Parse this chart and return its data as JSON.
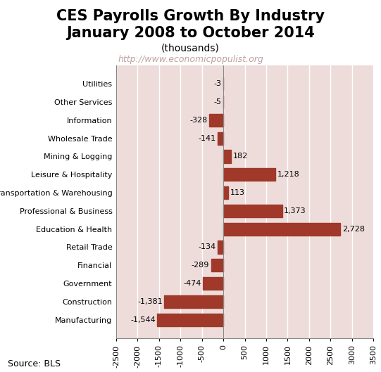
{
  "title_line1": "CES Payrolls Growth By Industry",
  "title_line2": "January 2008 to October 2014",
  "subtitle": "(thousands)",
  "watermark": "http://www.economicpopulist.org",
  "source": "Source: BLS",
  "categories": [
    "Manufacturing",
    "Construction",
    "Government",
    "Financial",
    "Retail Trade",
    "Education & Health",
    "Professional & Business",
    "Transportation & Warehousing",
    "Leisure & Hospitality",
    "Mining & Logging",
    "Wholesale Trade",
    "Information",
    "Other Services",
    "Utilities"
  ],
  "values": [
    -1544,
    -1381,
    -474,
    -289,
    -134,
    2728,
    1373,
    113,
    1218,
    182,
    -141,
    -328,
    -5,
    -3
  ],
  "bar_color": "#a0392a",
  "background_color": "#eddcda",
  "grid_color": "#ffffff",
  "xlim": [
    -2500,
    3500
  ],
  "xticks": [
    -2500,
    -2000,
    -1500,
    -1000,
    -500,
    0,
    500,
    1000,
    1500,
    2000,
    2500,
    3000,
    3500
  ],
  "title_fontsize": 15,
  "subtitle_fontsize": 10,
  "watermark_fontsize": 9,
  "label_fontsize": 8,
  "tick_fontsize": 8,
  "source_fontsize": 9,
  "bar_height": 0.7
}
